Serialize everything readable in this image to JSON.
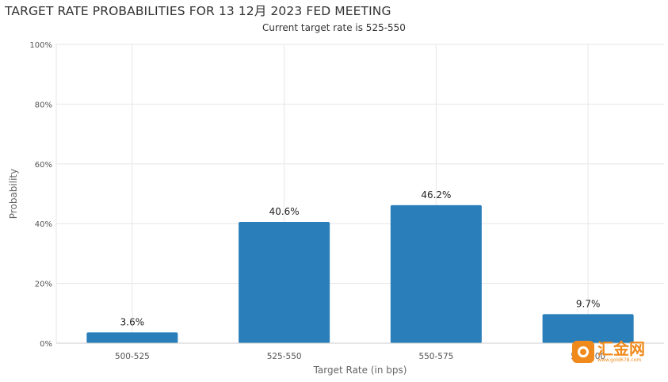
{
  "title": "TARGET RATE PROBABILITIES FOR 13 12月 2023 FED MEETING",
  "subtitle": "Current target rate is 525-550",
  "colors": {
    "bar": "#2a7fba",
    "grid": "#e6e6e6",
    "axis": "#cccccc",
    "watermark": "#f08a1c"
  },
  "watermark": {
    "text": "汇金网",
    "sub": "www.gold678.com",
    "icon": "gold678-logo-icon"
  },
  "chart_data": {
    "type": "bar",
    "categories": [
      "500-525",
      "525-550",
      "550-575",
      "575-600"
    ],
    "values": [
      3.6,
      40.6,
      46.2,
      9.7
    ],
    "value_labels": [
      "3.6%",
      "40.6%",
      "46.2%",
      "9.7%"
    ],
    "title": "TARGET RATE PROBABILITIES FOR 13 12月 2023 FED MEETING",
    "subtitle": "Current target rate is 525-550",
    "xlabel": "Target Rate (in bps)",
    "ylabel": "Probability",
    "ylim": [
      0,
      100
    ],
    "yticks": [
      0,
      20,
      40,
      60,
      80,
      100
    ],
    "ytick_labels": [
      "0%",
      "20%",
      "40%",
      "60%",
      "80%",
      "100%"
    ],
    "grid": true,
    "legend": "none"
  }
}
